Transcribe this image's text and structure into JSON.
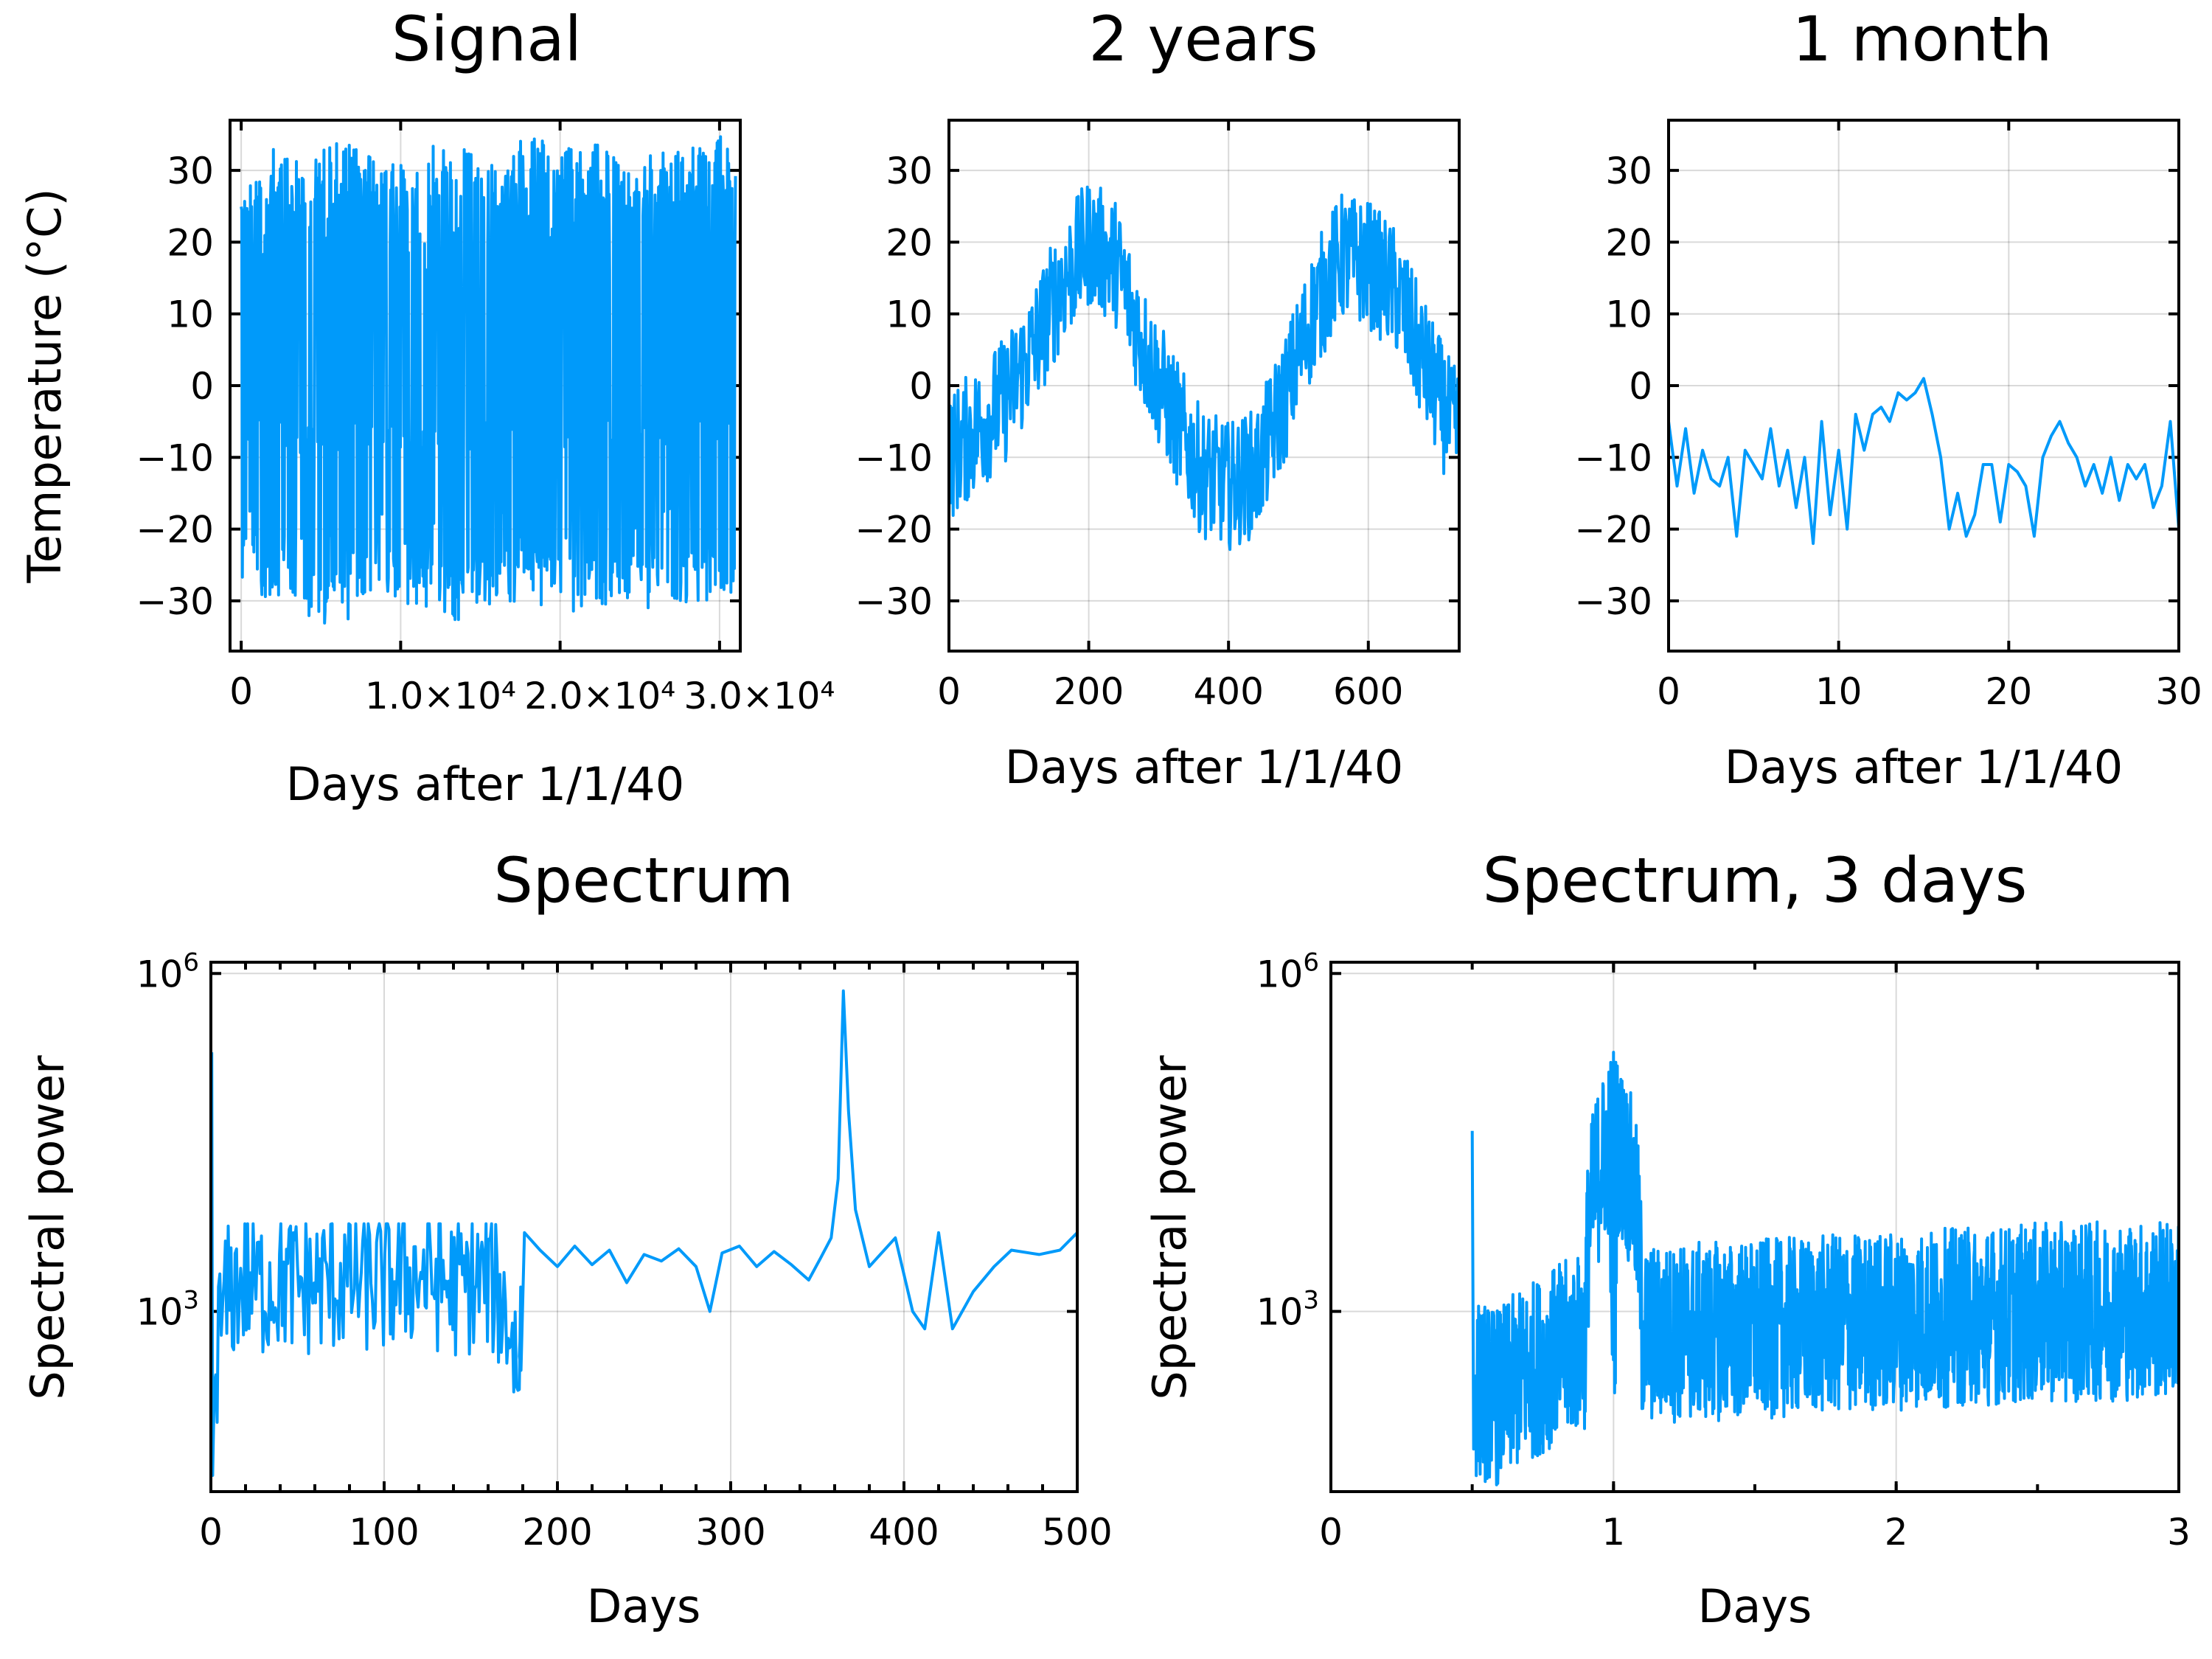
{
  "colors": {
    "series": "#009AFA"
  },
  "chart_data": [
    {
      "type": "line",
      "title": "Signal",
      "xlabel": "Days after 1/1/40",
      "ylabel": "Temperature (°C)",
      "xlim": [
        -700,
        31300
      ],
      "ylim": [
        -37,
        37
      ],
      "xticks": [
        0,
        10000,
        20000,
        30000
      ],
      "xtick_labels": [
        "0",
        "1.0×10⁴",
        "2.0×10⁴",
        "3.0×10⁴"
      ],
      "yticks": [
        -30,
        -20,
        -10,
        0,
        10,
        20,
        30
      ],
      "ytick_labels": [
        "−30",
        "−20",
        "−10",
        "0",
        "10",
        "20",
        "30"
      ],
      "yscale": "linear",
      "series": [
        {
          "name": "temperature",
          "x": [
            0,
            2000,
            4000,
            6000,
            8000,
            10000,
            12000,
            14000,
            16000,
            18000,
            20000,
            22000,
            24000,
            26000,
            28000,
            30000
          ],
          "y_max": [
            30,
            33,
            32,
            34,
            33,
            32,
            34,
            33,
            32,
            35,
            33,
            34,
            33,
            32,
            34,
            35
          ],
          "y_min": [
            -28,
            -30,
            -32,
            -34,
            -31,
            -30,
            -32,
            -33,
            -31,
            -30,
            -32,
            -31,
            -30,
            -32,
            -31,
            -30
          ],
          "pattern": "dense seasonal oscillation about 5 °C, amplitude about 30 °C"
        }
      ]
    },
    {
      "type": "line",
      "title": "2 years",
      "xlabel": "Days after 1/1/40",
      "ylabel": "",
      "xlim": [
        0,
        730
      ],
      "ylim": [
        -37,
        37
      ],
      "xticks": [
        0,
        200,
        400,
        600
      ],
      "xtick_labels": [
        "0",
        "200",
        "400",
        "600"
      ],
      "yticks": [
        -30,
        -20,
        -10,
        0,
        10,
        20,
        30
      ],
      "ytick_labels": [
        "−30",
        "−20",
        "−10",
        "0",
        "10",
        "20",
        "30"
      ],
      "yscale": "linear",
      "series": [
        {
          "name": "temperature",
          "x": [
            0,
            40,
            80,
            120,
            160,
            200,
            240,
            280,
            320,
            360,
            400,
            440,
            480,
            520,
            560,
            600,
            640,
            680,
            720
          ],
          "y": [
            -10,
            -6,
            -2,
            5,
            14,
            20,
            17,
            5,
            -4,
            -12,
            -14,
            -12,
            -2,
            10,
            18,
            17,
            13,
            3,
            -6
          ],
          "peaks_max": [
            29,
            30
          ],
          "trough_min": -26
        }
      ]
    },
    {
      "type": "line",
      "title": "1 month",
      "xlabel": "Days after 1/1/40",
      "ylabel": "",
      "xlim": [
        0,
        30
      ],
      "ylim": [
        -37,
        37
      ],
      "xticks": [
        0,
        10,
        20,
        30
      ],
      "xtick_labels": [
        "0",
        "10",
        "20",
        "30"
      ],
      "yticks": [
        -30,
        -20,
        -10,
        0,
        10,
        20,
        30
      ],
      "ytick_labels": [
        "−30",
        "−20",
        "−10",
        "0",
        "10",
        "20",
        "30"
      ],
      "yscale": "linear",
      "series": [
        {
          "name": "temperature",
          "x": [
            0,
            0.5,
            1,
            1.5,
            2,
            2.5,
            3,
            3.5,
            4,
            4.5,
            5,
            5.5,
            6,
            6.5,
            7,
            7.5,
            8,
            8.5,
            9,
            9.5,
            10,
            10.5,
            11,
            11.5,
            12,
            12.5,
            13,
            13.5,
            14,
            14.5,
            15,
            15.5,
            16,
            16.5,
            17,
            17.5,
            18,
            18.5,
            19,
            19.5,
            20,
            20.5,
            21,
            21.5,
            22,
            22.5,
            23,
            23.5,
            24,
            24.5,
            25,
            25.5,
            26,
            26.5,
            27,
            27.5,
            28,
            28.5,
            29,
            29.5,
            30
          ],
          "y": [
            -5,
            -14,
            -6,
            -15,
            -9,
            -13,
            -14,
            -10,
            -21,
            -9,
            -11,
            -13,
            -6,
            -14,
            -9,
            -17,
            -10,
            -22,
            -5,
            -18,
            -9,
            -20,
            -4,
            -9,
            -4,
            -3,
            -5,
            -1,
            -2,
            -1,
            1,
            -4,
            -10,
            -20,
            -15,
            -21,
            -18,
            -11,
            -11,
            -19,
            -11,
            -12,
            -14,
            -21,
            -10,
            -7,
            -5,
            -8,
            -10,
            -14,
            -11,
            -15,
            -10,
            -16,
            -11,
            -13,
            -11,
            -17,
            -14,
            -5,
            -20
          ]
        }
      ]
    },
    {
      "type": "line",
      "title": "Spectrum",
      "xlabel": "Days",
      "ylabel": "Spectral power",
      "xlim": [
        0,
        500
      ],
      "ylim_log10": [
        1.4,
        6.1
      ],
      "xticks": [
        0,
        100,
        200,
        300,
        400,
        500
      ],
      "xtick_labels": [
        "0",
        "100",
        "200",
        "300",
        "400",
        "500"
      ],
      "yticks_log10": [
        3,
        6
      ],
      "ytick_labels": [
        "10",
        "10"
      ],
      "ytick_exponents": [
        "3",
        "6"
      ],
      "yscale": "log",
      "series": [
        {
          "name": "spectral power vs period",
          "x": [
            0.5,
            2,
            5,
            10,
            20,
            30,
            40,
            50,
            60,
            80,
            100,
            120,
            140,
            160,
            178,
            181,
            200,
            220,
            240,
            260,
            280,
            288,
            300,
            320,
            340,
            350,
            360,
            365,
            372,
            380,
            395,
            410,
            425,
            440,
            455,
            470,
            490,
            500
          ],
          "y": [
            200000,
            300,
            1200,
            2500,
            3500,
            3000,
            3500,
            3000,
            3200,
            3500,
            3200,
            4000,
            3000,
            3500,
            400,
            5000,
            3500,
            3000,
            3600,
            2800,
            3200,
            1000,
            3500,
            2500,
            2000,
            2500,
            20000,
            700000,
            8000,
            2000,
            3000,
            700,
            6000,
            1000,
            3000,
            3500,
            3000,
            5000
          ],
          "noise_floor_min": 35
        }
      ]
    },
    {
      "type": "line",
      "title": "Spectrum, 3 days",
      "xlabel": "Days",
      "ylabel": "Spectral power",
      "xlim": [
        0,
        3
      ],
      "ylim_log10": [
        1.4,
        6.1
      ],
      "xticks": [
        0,
        1,
        2,
        3
      ],
      "xtick_labels": [
        "0",
        "1",
        "2",
        "3"
      ],
      "yticks_log10": [
        3,
        6
      ],
      "ytick_labels": [
        "10",
        "10"
      ],
      "ytick_exponents": [
        "3",
        "6"
      ],
      "yscale": "log",
      "series": [
        {
          "name": "spectral power vs period",
          "x": [
            0.5,
            0.6,
            0.75,
            0.9,
            1.0,
            1.1,
            1.5,
            2.0,
            2.5,
            3.0
          ],
          "y_center": [
            300,
            250,
            500,
            800,
            50000,
            900,
            1000,
            1200,
            1400,
            1500
          ],
          "y_max": [
            40000,
            1000,
            2000,
            2500,
            200000,
            2500,
            2500,
            3000,
            4000,
            5000
          ],
          "y_min": [
            40,
            30,
            40,
            60,
            100,
            80,
            100,
            100,
            150,
            200
          ],
          "pattern": "dense noisy band; spike at 0.5 and sharp peak at 1 day"
        }
      ]
    }
  ]
}
